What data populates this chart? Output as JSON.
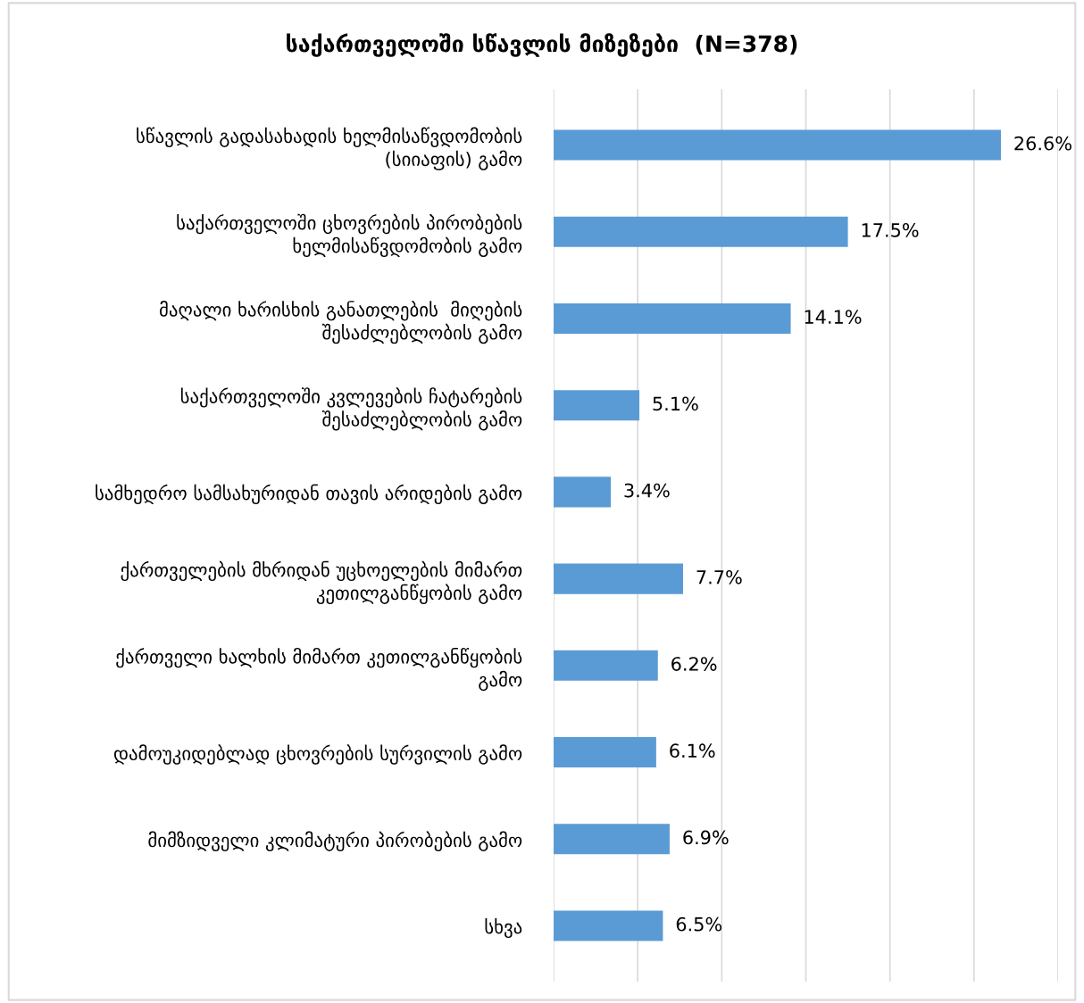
{
  "chart_data": {
    "type": "bar",
    "orientation": "horizontal",
    "title": "საქართველოში სწავლის მიზეზები  (N=378)",
    "categories": [
      "სწავლის გადასახადის ხელმისაწვდომობის\n(სიიაფის) გამო",
      "საქართველოში ცხოვრების პირობების\nხელმისაწვდომობის გამო",
      "მაღალი ხარისხის განათლების  მიღების\nშესაძლებლობის გამო",
      "საქართველოში კვლევების ჩატარების\nშესაძლებლობის გამო",
      "სამხედრო სამსახურიდან თავის არიდების გამო",
      "ქართველების მხრიდან უცხოელების მიმართ\nკეთილგანწყობის გამო",
      "ქართველი ხალხის მიმართ კეთილგანწყობის\nგამო",
      "დამოუკიდებლად ცხოვრების სურვილის გამო",
      "მიმზიდველი კლიმატური პირობების გამო",
      "სხვა"
    ],
    "values": [
      26.6,
      17.5,
      14.1,
      5.1,
      3.4,
      7.7,
      6.2,
      6.1,
      6.9,
      6.5
    ],
    "value_labels": [
      "26.6%",
      "17.5%",
      "14.1%",
      "5.1%",
      "3.4%",
      "7.7%",
      "6.2%",
      "6.1%",
      "6.9%",
      "6.5%"
    ],
    "color": "#5b9bd5",
    "xlim": [
      0,
      30
    ],
    "xticks": [
      {
        "value": 0,
        "label": null
      },
      {
        "value": 5,
        "label": null
      },
      {
        "value": 10,
        "label": null
      },
      {
        "value": 15,
        "label": null
      },
      {
        "value": 20,
        "label": null
      },
      {
        "value": 25,
        "label": null
      },
      {
        "value": 30,
        "label": null
      }
    ],
    "grid": "x",
    "tick_labels": "y",
    "legend": false
  }
}
